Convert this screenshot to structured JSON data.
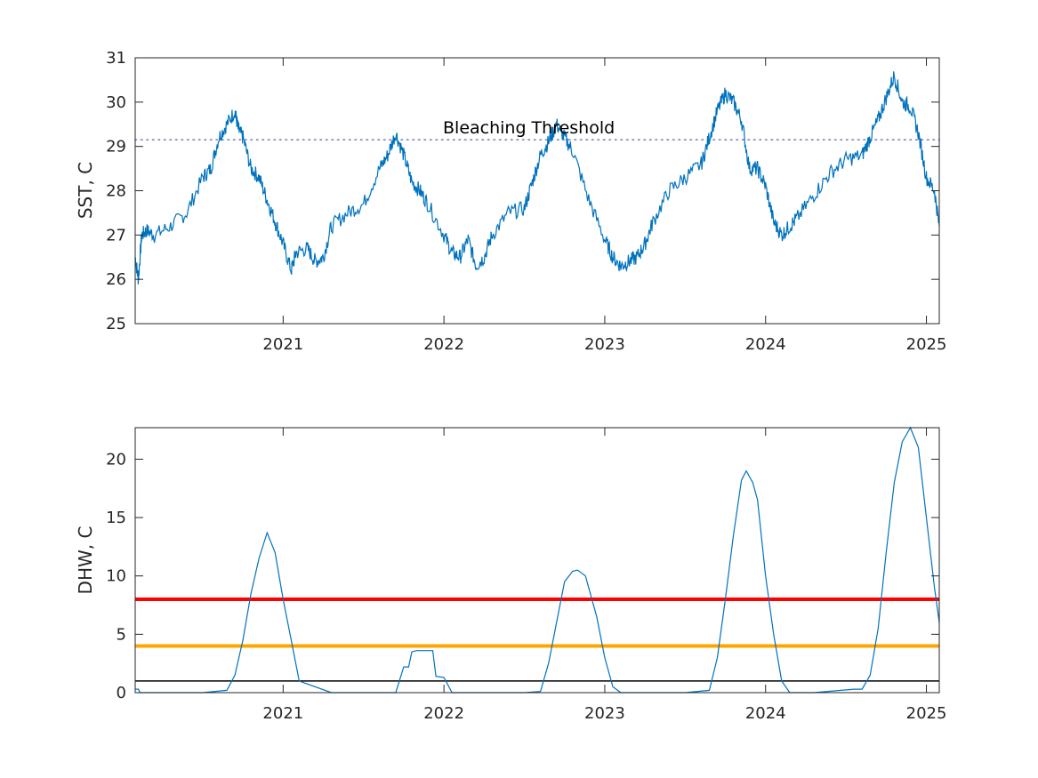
{
  "chart_data": [
    {
      "type": "line",
      "ylabel": "SST, C",
      "xlabel": "",
      "xlim": [
        2020.08,
        2025.08
      ],
      "ylim": [
        25,
        31
      ],
      "xticks": [
        2021,
        2022,
        2023,
        2024,
        2025
      ],
      "yticks": [
        25,
        26,
        27,
        28,
        29,
        30,
        31
      ],
      "grid": false,
      "series_color": "#0072BD",
      "series": [
        {
          "x": [
            2020.08,
            2020.1,
            2020.12,
            2020.15,
            2020.2,
            2020.3,
            2020.4,
            2020.5,
            2020.55,
            2020.6,
            2020.65,
            2020.7,
            2020.72,
            2020.75,
            2020.8,
            2020.85,
            2020.9,
            2020.95,
            2021.0,
            2021.05,
            2021.08,
            2021.15,
            2021.2,
            2021.25,
            2021.3,
            2021.4,
            2021.5,
            2021.6,
            2021.65,
            2021.7,
            2021.75,
            2021.8,
            2021.85,
            2021.9,
            2022.0,
            2022.05,
            2022.1,
            2022.15,
            2022.2,
            2022.25,
            2022.3,
            2022.4,
            2022.5,
            2022.55,
            2022.6,
            2022.65,
            2022.7,
            2022.75,
            2022.8,
            2022.9,
            2023.0,
            2023.05,
            2023.1,
            2023.15,
            2023.2,
            2023.25,
            2023.3,
            2023.4,
            2023.5,
            2023.6,
            2023.65,
            2023.7,
            2023.75,
            2023.8,
            2023.85,
            2023.9,
            2023.95,
            2024.0,
            2024.05,
            2024.1,
            2024.15,
            2024.2,
            2024.3,
            2024.4,
            2024.5,
            2024.6,
            2024.65,
            2024.7,
            2024.75,
            2024.8,
            2024.85,
            2024.9,
            2024.95,
            2025.0,
            2025.05,
            2025.08
          ],
          "values": [
            26.5,
            26.0,
            27.0,
            27.1,
            27.0,
            27.2,
            27.5,
            28.3,
            28.5,
            29.2,
            29.5,
            29.8,
            29.4,
            29.2,
            28.5,
            28.3,
            27.8,
            27.3,
            26.8,
            26.2,
            26.6,
            26.7,
            26.4,
            26.5,
            27.2,
            27.5,
            27.7,
            28.5,
            28.8,
            29.3,
            28.8,
            28.2,
            28.0,
            27.7,
            27.0,
            26.6,
            26.5,
            26.9,
            26.3,
            26.5,
            27.0,
            27.5,
            27.6,
            28.2,
            28.8,
            29.1,
            29.5,
            29.2,
            28.9,
            27.8,
            26.9,
            26.5,
            26.3,
            26.4,
            26.5,
            26.8,
            27.3,
            28.0,
            28.3,
            28.6,
            29.2,
            29.8,
            30.2,
            30.0,
            29.6,
            28.5,
            28.5,
            28.1,
            27.3,
            27.0,
            27.2,
            27.4,
            27.9,
            28.4,
            28.7,
            28.8,
            29.2,
            29.6,
            30.1,
            30.6,
            30.0,
            29.9,
            29.3,
            28.3,
            28.0,
            27.2
          ]
        }
      ],
      "annotations": [
        {
          "label": "Bleaching Threshold",
          "y": 29.15,
          "style": "dotted",
          "color": "#7f7fc6"
        }
      ]
    },
    {
      "type": "line",
      "ylabel": "DHW, C",
      "xlabel": "",
      "xlim": [
        2020.08,
        2025.08
      ],
      "ylim": [
        0,
        22.7
      ],
      "xticks": [
        2021,
        2022,
        2023,
        2024,
        2025
      ],
      "yticks": [
        0,
        5,
        10,
        15,
        20
      ],
      "grid": false,
      "series_color": "#0072BD",
      "series": [
        {
          "x": [
            2020.08,
            2020.1,
            2020.11,
            2020.3,
            2020.5,
            2020.65,
            2020.7,
            2020.75,
            2020.8,
            2020.85,
            2020.9,
            2020.95,
            2021.0,
            2021.05,
            2021.1,
            2021.3,
            2021.5,
            2021.7,
            2021.75,
            2021.78,
            2021.8,
            2021.83,
            2021.93,
            2021.95,
            2022.0,
            2022.05,
            2022.1,
            2022.3,
            2022.5,
            2022.6,
            2022.65,
            2022.7,
            2022.75,
            2022.8,
            2022.83,
            2022.88,
            2022.95,
            2023.0,
            2023.05,
            2023.1,
            2023.3,
            2023.5,
            2023.65,
            2023.7,
            2023.75,
            2023.8,
            2023.85,
            2023.88,
            2023.92,
            2023.95,
            2024.0,
            2024.05,
            2024.1,
            2024.15,
            2024.3,
            2024.55,
            2024.6,
            2024.65,
            2024.7,
            2024.75,
            2024.8,
            2024.85,
            2024.9,
            2024.95,
            2025.0,
            2025.05,
            2025.08
          ],
          "values": [
            0.3,
            0.3,
            0,
            0,
            0,
            0.2,
            1.5,
            4.5,
            8.5,
            11.5,
            13.7,
            12.0,
            8.0,
            4.5,
            1.0,
            0,
            0,
            0,
            2.2,
            2.2,
            3.5,
            3.6,
            3.6,
            1.4,
            1.3,
            0,
            0,
            0,
            0,
            0.1,
            2.5,
            6.0,
            9.5,
            10.4,
            10.5,
            10.0,
            6.5,
            3.0,
            0.5,
            0,
            0,
            0,
            0.2,
            3.0,
            8.0,
            13.5,
            18.2,
            19.0,
            18.0,
            16.5,
            10.0,
            5.0,
            1.0,
            0,
            0,
            0.3,
            0.3,
            1.5,
            5.5,
            12.0,
            18.0,
            21.5,
            22.7,
            21.0,
            15.0,
            9.0,
            6.0
          ]
        }
      ],
      "reference_lines": [
        {
          "y": 8,
          "color": "#ff0000"
        },
        {
          "y": 4,
          "color": "#ffa500"
        },
        {
          "y": 1,
          "color": "#000000"
        }
      ]
    }
  ]
}
